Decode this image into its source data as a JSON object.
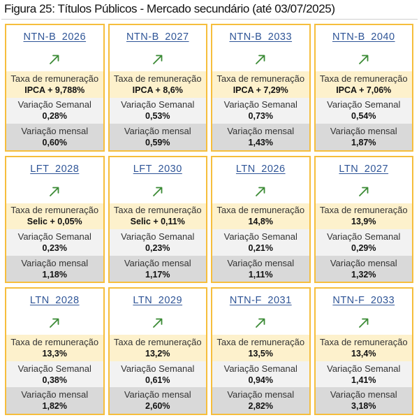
{
  "title": "Figura 25: Títulos Públicos - Mercado secundário (até 03/07/2025)",
  "labels": {
    "taxa": "Taxa de remuneração",
    "semanal": "Variação Semanal",
    "mensal": "Variação mensal"
  },
  "colors": {
    "card_border": "#f6be3c",
    "title_link": "#2f5597",
    "arrow": "#3a8a34",
    "taxa_bg": "#fdf1cc",
    "semanal_bg": "#f2f2f2",
    "mensal_bg": "#d9d9d9"
  },
  "trend_icon": "arrow-up-right-icon",
  "cards": [
    {
      "name": "NTN-B_2026",
      "taxa": "IPCA + 9,788%",
      "semanal": "0,28%",
      "mensal": "0,60%"
    },
    {
      "name": "NTN-B_2027",
      "taxa": "IPCA + 8,6%",
      "semanal": "0,53%",
      "mensal": "0,59%"
    },
    {
      "name": "NTN-B_2033",
      "taxa": "IPCA + 7,29%",
      "semanal": "0,73%",
      "mensal": "1,43%"
    },
    {
      "name": "NTN-B_2040",
      "taxa": "IPCA + 7,06%",
      "semanal": "0,54%",
      "mensal": "1,87%"
    },
    {
      "name": "LFT_2028",
      "taxa": "Selic + 0,05%",
      "semanal": "0,23%",
      "mensal": "1,18%"
    },
    {
      "name": "LFT_2030",
      "taxa": "Selic + 0,11%",
      "semanal": "0,23%",
      "mensal": "1,17%"
    },
    {
      "name": "LTN_2026",
      "taxa": "14,8%",
      "semanal": "0,21%",
      "mensal": "1,11%"
    },
    {
      "name": "LTN_2027",
      "taxa": "13,9%",
      "semanal": "0,29%",
      "mensal": "1,32%"
    },
    {
      "name": "LTN_2028",
      "taxa": "13,3%",
      "semanal": "0,38%",
      "mensal": "1,82%"
    },
    {
      "name": "LTN_2029",
      "taxa": "13,2%",
      "semanal": "0,61%",
      "mensal": "2,60%"
    },
    {
      "name": "NTN-F_2031",
      "taxa": "13,5%",
      "semanal": "0,94%",
      "mensal": "2,82%"
    },
    {
      "name": "NTN-F_2033",
      "taxa": "13,4%",
      "semanal": "1,41%",
      "mensal": "3,18%"
    }
  ]
}
